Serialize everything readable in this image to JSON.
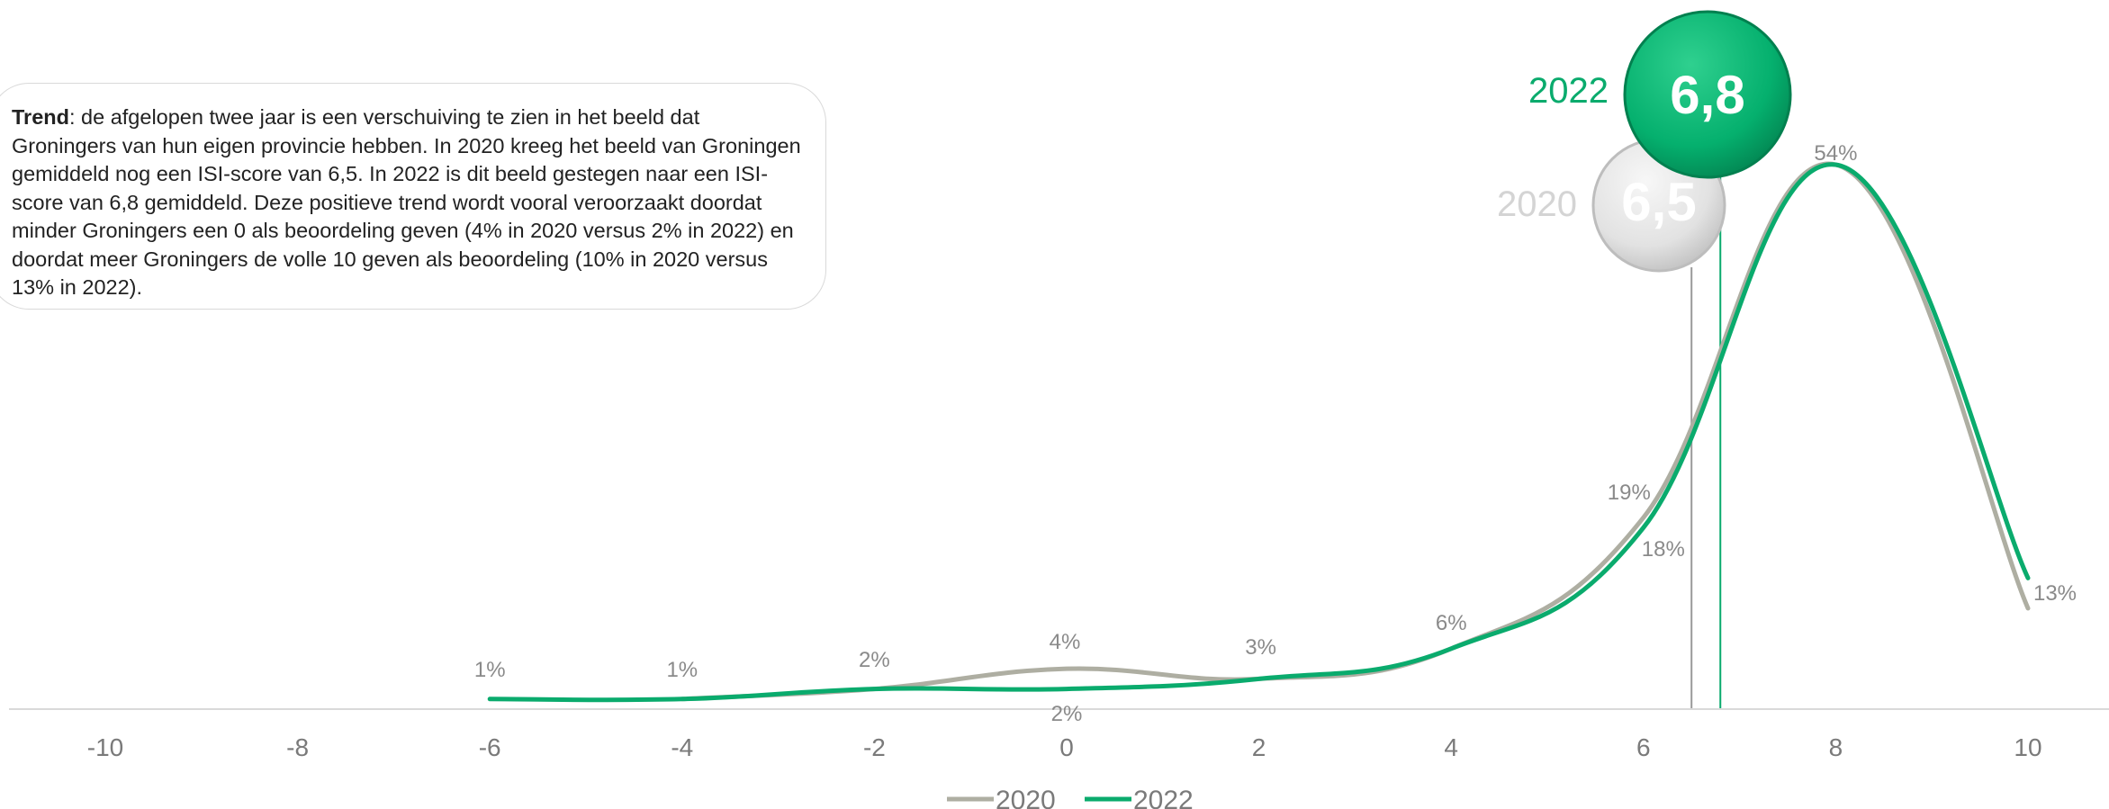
{
  "trend": {
    "label": "Trend",
    "text": ": de afgelopen twee jaar is een verschuiving te zien in het beeld dat Groningers van hun eigen provincie hebben. In 2020 kreeg het beeld van Groningen gemiddeld nog een ISI-score van 6,5. In 2022 is dit beeld gestegen naar een ISI-score van 6,8 gemiddeld. Deze positieve trend wordt vooral veroorzaakt doordat minder Groningers een 0 als beoordeling geven (4% in 2020 versus 2% in 2022) en doordat meer Groningers de volle 10 geven als beoordeling (10% in 2020 versus 13% in 2022)."
  },
  "colors": {
    "series_2020": "#aeaea2",
    "series_2022": "#0aab6d",
    "axis": "#d9d9d9",
    "bubble_2022": "#05b06e",
    "bubble_2020": "#e4e4e4",
    "year_2022": "#0aab6d",
    "year_2020": "#d4d4d4"
  },
  "chart_data": {
    "type": "line",
    "x": [
      -6,
      -4,
      -2,
      0,
      2,
      4,
      6,
      8,
      10
    ],
    "xlim": [
      -10,
      10
    ],
    "ylim": [
      0,
      54
    ],
    "x_ticks": [
      "-10",
      "-8",
      "-6",
      "-4",
      "-2",
      "0",
      "2",
      "4",
      "6",
      "8",
      "10"
    ],
    "grid": false,
    "legend_position": "bottom",
    "series": [
      {
        "name": "2020",
        "color_key": "series_2020",
        "x": [
          -4,
          -2,
          0,
          2,
          4,
          6,
          8,
          10
        ],
        "values": [
          1,
          2,
          4,
          3,
          6,
          19,
          54,
          10
        ]
      },
      {
        "name": "2022",
        "color_key": "series_2022",
        "x": [
          -6,
          -4,
          -2,
          0,
          2,
          4,
          6,
          8,
          10
        ],
        "values": [
          1,
          1,
          2,
          2,
          3,
          6,
          18,
          54,
          13
        ]
      }
    ],
    "data_labels": [
      {
        "text": "1%",
        "x": -6
      },
      {
        "text": "1%",
        "x": -4
      },
      {
        "text": "2%",
        "x": -2
      },
      {
        "text": "4%",
        "x": 0
      },
      {
        "text": "2%",
        "x": 0
      },
      {
        "text": "3%",
        "x": 2
      },
      {
        "text": "6%",
        "x": 4
      },
      {
        "text": "19%",
        "x": 6
      },
      {
        "text": "18%",
        "x": 6
      },
      {
        "text": "54%",
        "x": 8
      },
      {
        "text": "13%",
        "x": 10
      }
    ],
    "means": [
      {
        "year": "2020",
        "value": 6.5,
        "label": "6,5",
        "color_key": "year_2020"
      },
      {
        "year": "2022",
        "value": 6.8,
        "label": "6,8",
        "color_key": "year_2022"
      }
    ]
  }
}
